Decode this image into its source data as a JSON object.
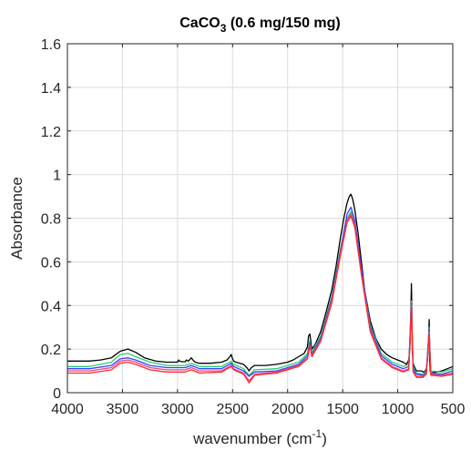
{
  "chart_data": {
    "type": "line",
    "title": {
      "main": "CaCO",
      "sub": "3",
      "rest": " (0.6 mg/150 mg)"
    },
    "xlabel": {
      "main": "wavenumber (cm",
      "sup": "-1",
      "rest": ")"
    },
    "ylabel": "Absorbance",
    "xlim": [
      4000,
      500
    ],
    "x_reversed": true,
    "ylim": [
      0,
      1.6
    ],
    "xticks": [
      4000,
      3500,
      3000,
      2500,
      2000,
      1500,
      1000,
      500
    ],
    "xtick_labels": [
      "4000",
      "3500",
      "3000",
      "2500",
      "2000",
      "1500",
      "1000",
      "500"
    ],
    "yticks": [
      0,
      0.2,
      0.4,
      0.6,
      0.8,
      1,
      1.2,
      1.4,
      1.6
    ],
    "ytick_labels": [
      "0",
      "0.2",
      "0.4",
      "0.6",
      "0.8",
      "1",
      "1.2",
      "1.4",
      "1.6"
    ],
    "grid": true,
    "series": [
      {
        "color": "#000000",
        "x": [
          4000,
          3900,
          3800,
          3700,
          3600,
          3520,
          3450,
          3380,
          3300,
          3200,
          3100,
          3000,
          2990,
          2985,
          2960,
          2930,
          2920,
          2900,
          2875,
          2860,
          2840,
          2800,
          2700,
          2600,
          2550,
          2525,
          2512,
          2500,
          2490,
          2470,
          2400,
          2370,
          2350,
          2330,
          2300,
          2200,
          2100,
          2000,
          1950,
          1900,
          1850,
          1820,
          1810,
          1798,
          1790,
          1780,
          1750,
          1700,
          1650,
          1600,
          1560,
          1520,
          1490,
          1460,
          1440,
          1425,
          1410,
          1390,
          1360,
          1330,
          1300,
          1250,
          1200,
          1150,
          1100,
          1050,
          1000,
          950,
          920,
          900,
          890,
          880,
          876,
          872,
          868,
          860,
          850,
          830,
          800,
          780,
          770,
          760,
          750,
          740,
          730,
          720,
          714,
          712,
          710,
          705,
          700,
          650,
          600,
          550,
          500
        ],
        "y": [
          0.145,
          0.145,
          0.145,
          0.15,
          0.16,
          0.19,
          0.2,
          0.185,
          0.16,
          0.145,
          0.14,
          0.14,
          0.15,
          0.145,
          0.142,
          0.142,
          0.15,
          0.145,
          0.16,
          0.15,
          0.14,
          0.135,
          0.135,
          0.14,
          0.15,
          0.165,
          0.175,
          0.155,
          0.145,
          0.14,
          0.13,
          0.115,
          0.1,
          0.115,
          0.125,
          0.125,
          0.13,
          0.14,
          0.15,
          0.165,
          0.18,
          0.21,
          0.26,
          0.27,
          0.24,
          0.2,
          0.22,
          0.28,
          0.37,
          0.47,
          0.58,
          0.71,
          0.8,
          0.87,
          0.9,
          0.91,
          0.89,
          0.84,
          0.73,
          0.6,
          0.47,
          0.33,
          0.25,
          0.2,
          0.175,
          0.16,
          0.15,
          0.14,
          0.13,
          0.15,
          0.2,
          0.4,
          0.5,
          0.4,
          0.2,
          0.135,
          0.12,
          0.1,
          0.1,
          0.1,
          0.095,
          0.095,
          0.1,
          0.11,
          0.15,
          0.25,
          0.335,
          0.25,
          0.15,
          0.1,
          0.09,
          0.095,
          0.1,
          0.11,
          0.12
        ]
      },
      {
        "color": "#2ecc71",
        "x": [
          4000,
          3800,
          3600,
          3520,
          3450,
          3380,
          3250,
          3100,
          3000,
          2930,
          2875,
          2800,
          2600,
          2512,
          2490,
          2400,
          2350,
          2300,
          2100,
          1900,
          1820,
          1798,
          1780,
          1700,
          1600,
          1520,
          1460,
          1425,
          1390,
          1330,
          1250,
          1150,
          1050,
          950,
          900,
          876,
          860,
          830,
          770,
          740,
          714,
          700,
          600,
          500
        ],
        "y": [
          0.12,
          0.12,
          0.14,
          0.175,
          0.18,
          0.165,
          0.14,
          0.125,
          0.125,
          0.125,
          0.135,
          0.12,
          0.12,
          0.145,
          0.13,
          0.11,
          0.08,
          0.105,
          0.11,
          0.14,
          0.18,
          0.24,
          0.185,
          0.26,
          0.44,
          0.66,
          0.8,
          0.83,
          0.78,
          0.56,
          0.31,
          0.18,
          0.14,
          0.12,
          0.13,
          0.42,
          0.12,
          0.09,
          0.085,
          0.1,
          0.3,
          0.1,
          0.095,
          0.11
        ]
      },
      {
        "color": "#3344ff",
        "x": [
          4000,
          3800,
          3600,
          3520,
          3450,
          3380,
          3250,
          3100,
          3000,
          2930,
          2875,
          2800,
          2600,
          2512,
          2490,
          2400,
          2350,
          2300,
          2100,
          1900,
          1820,
          1798,
          1780,
          1700,
          1600,
          1520,
          1460,
          1425,
          1390,
          1330,
          1250,
          1150,
          1050,
          950,
          900,
          876,
          860,
          830,
          770,
          740,
          714,
          700,
          600,
          500
        ],
        "y": [
          0.11,
          0.11,
          0.125,
          0.155,
          0.16,
          0.15,
          0.125,
          0.115,
          0.115,
          0.115,
          0.125,
          0.11,
          0.11,
          0.135,
          0.12,
          0.1,
          0.075,
          0.095,
          0.1,
          0.13,
          0.17,
          0.23,
          0.175,
          0.25,
          0.43,
          0.65,
          0.82,
          0.85,
          0.79,
          0.57,
          0.3,
          0.17,
          0.13,
          0.11,
          0.12,
          0.41,
          0.11,
          0.085,
          0.08,
          0.095,
          0.29,
          0.09,
          0.085,
          0.1
        ]
      },
      {
        "color": "#e8458b",
        "x": [
          4000,
          3800,
          3600,
          3520,
          3450,
          3380,
          3250,
          3100,
          3000,
          2930,
          2875,
          2800,
          2600,
          2512,
          2490,
          2400,
          2350,
          2300,
          2100,
          1900,
          1820,
          1798,
          1780,
          1700,
          1600,
          1520,
          1460,
          1425,
          1390,
          1330,
          1250,
          1150,
          1050,
          950,
          900,
          876,
          860,
          830,
          770,
          740,
          714,
          700,
          600,
          500
        ],
        "y": [
          0.1,
          0.1,
          0.115,
          0.145,
          0.15,
          0.14,
          0.115,
          0.105,
          0.105,
          0.105,
          0.115,
          0.1,
          0.1,
          0.125,
          0.11,
          0.09,
          0.055,
          0.085,
          0.095,
          0.125,
          0.16,
          0.22,
          0.17,
          0.24,
          0.42,
          0.64,
          0.79,
          0.82,
          0.77,
          0.55,
          0.29,
          0.16,
          0.12,
          0.1,
          0.11,
          0.4,
          0.1,
          0.075,
          0.075,
          0.09,
          0.28,
          0.085,
          0.08,
          0.09
        ]
      },
      {
        "color": "#ff2a2a",
        "x": [
          4000,
          3800,
          3600,
          3520,
          3450,
          3380,
          3250,
          3100,
          3000,
          2930,
          2875,
          2800,
          2600,
          2512,
          2490,
          2400,
          2350,
          2300,
          2100,
          1900,
          1820,
          1798,
          1780,
          1700,
          1600,
          1520,
          1460,
          1425,
          1390,
          1330,
          1250,
          1150,
          1050,
          950,
          900,
          876,
          860,
          830,
          770,
          740,
          714,
          700,
          600,
          500
        ],
        "y": [
          0.09,
          0.09,
          0.105,
          0.135,
          0.14,
          0.13,
          0.105,
          0.095,
          0.095,
          0.095,
          0.105,
          0.09,
          0.095,
          0.12,
          0.105,
          0.085,
          0.045,
          0.08,
          0.09,
          0.12,
          0.155,
          0.215,
          0.165,
          0.235,
          0.41,
          0.63,
          0.78,
          0.81,
          0.76,
          0.54,
          0.28,
          0.155,
          0.115,
          0.095,
          0.105,
          0.39,
          0.095,
          0.07,
          0.07,
          0.085,
          0.27,
          0.08,
          0.075,
          0.085
        ]
      }
    ]
  }
}
